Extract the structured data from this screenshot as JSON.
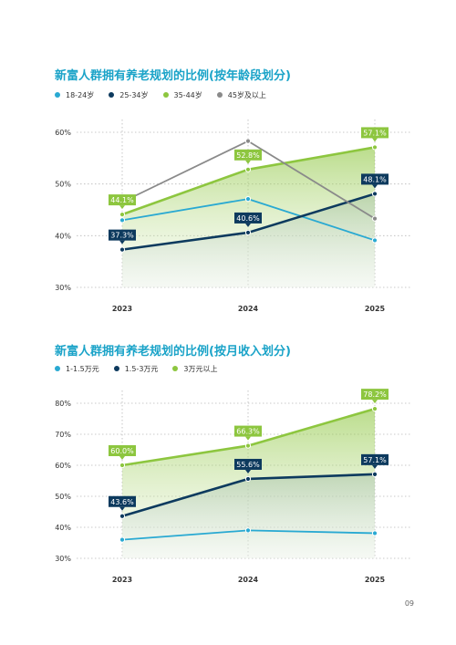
{
  "page_number": "09",
  "charts": [
    {
      "title": "新富人群拥有养老规划的比例(按年龄段划分)",
      "chart_data": {
        "type": "line",
        "x": [
          "2023",
          "2024",
          "2025"
        ],
        "ylim": [
          30,
          60
        ],
        "yticks": [
          30,
          40,
          50,
          60
        ],
        "ytick_labels": [
          "30%",
          "40%",
          "50%",
          "60%"
        ],
        "grid": true,
        "legend_position": "top-left",
        "series": [
          {
            "name": "18-24岁",
            "color": "#29a9d2",
            "values": [
              43,
              47.1,
              39.1
            ],
            "labeled": false,
            "fill": null
          },
          {
            "name": "25-34岁",
            "color": "#0d3a5e",
            "values": [
              37.3,
              40.6,
              48.1
            ],
            "labeled": true,
            "labels": [
              "37.3%",
              "40.6%",
              "48.1%"
            ],
            "label_pos": "above",
            "fill": "blue"
          },
          {
            "name": "35-44岁",
            "color": "#8dc63f",
            "values": [
              44.1,
              52.8,
              57.1
            ],
            "labeled": true,
            "labels": [
              "44.1%",
              "52.8%",
              "57.1%"
            ],
            "label_pos": "above",
            "fill": "green"
          },
          {
            "name": "45岁及以上",
            "color": "#8a8a8a",
            "values": [
              46.5,
              58.3,
              43.3
            ],
            "labeled": false,
            "fill": null
          }
        ]
      }
    },
    {
      "title": "新富人群拥有养老规划的比例(按月收入划分)",
      "chart_data": {
        "type": "line",
        "x": [
          "2023",
          "2024",
          "2025"
        ],
        "ylim": [
          30,
          80
        ],
        "yticks": [
          30,
          40,
          50,
          60,
          70,
          80
        ],
        "ytick_labels": [
          "30%",
          "40%",
          "50%",
          "60%",
          "70%",
          "80%"
        ],
        "grid": true,
        "legend_position": "top-left",
        "series": [
          {
            "name": "1-1.5万元",
            "color": "#29a9d2",
            "values": [
              36,
              39,
              38.1
            ],
            "labeled": false,
            "fill": null
          },
          {
            "name": "1.5-3万元",
            "color": "#0d3a5e",
            "values": [
              43.6,
              55.6,
              57.1
            ],
            "labeled": true,
            "labels": [
              "43.6%",
              "55.6%",
              "57.1%"
            ],
            "label_pos": "above",
            "fill": "blue"
          },
          {
            "name": "3万元以上",
            "color": "#8dc63f",
            "values": [
              60,
              66.3,
              78.2
            ],
            "labeled": true,
            "labels": [
              "60.0%",
              "66.3%",
              "78.2%"
            ],
            "label_pos": "above",
            "fill": "green"
          }
        ]
      }
    }
  ]
}
